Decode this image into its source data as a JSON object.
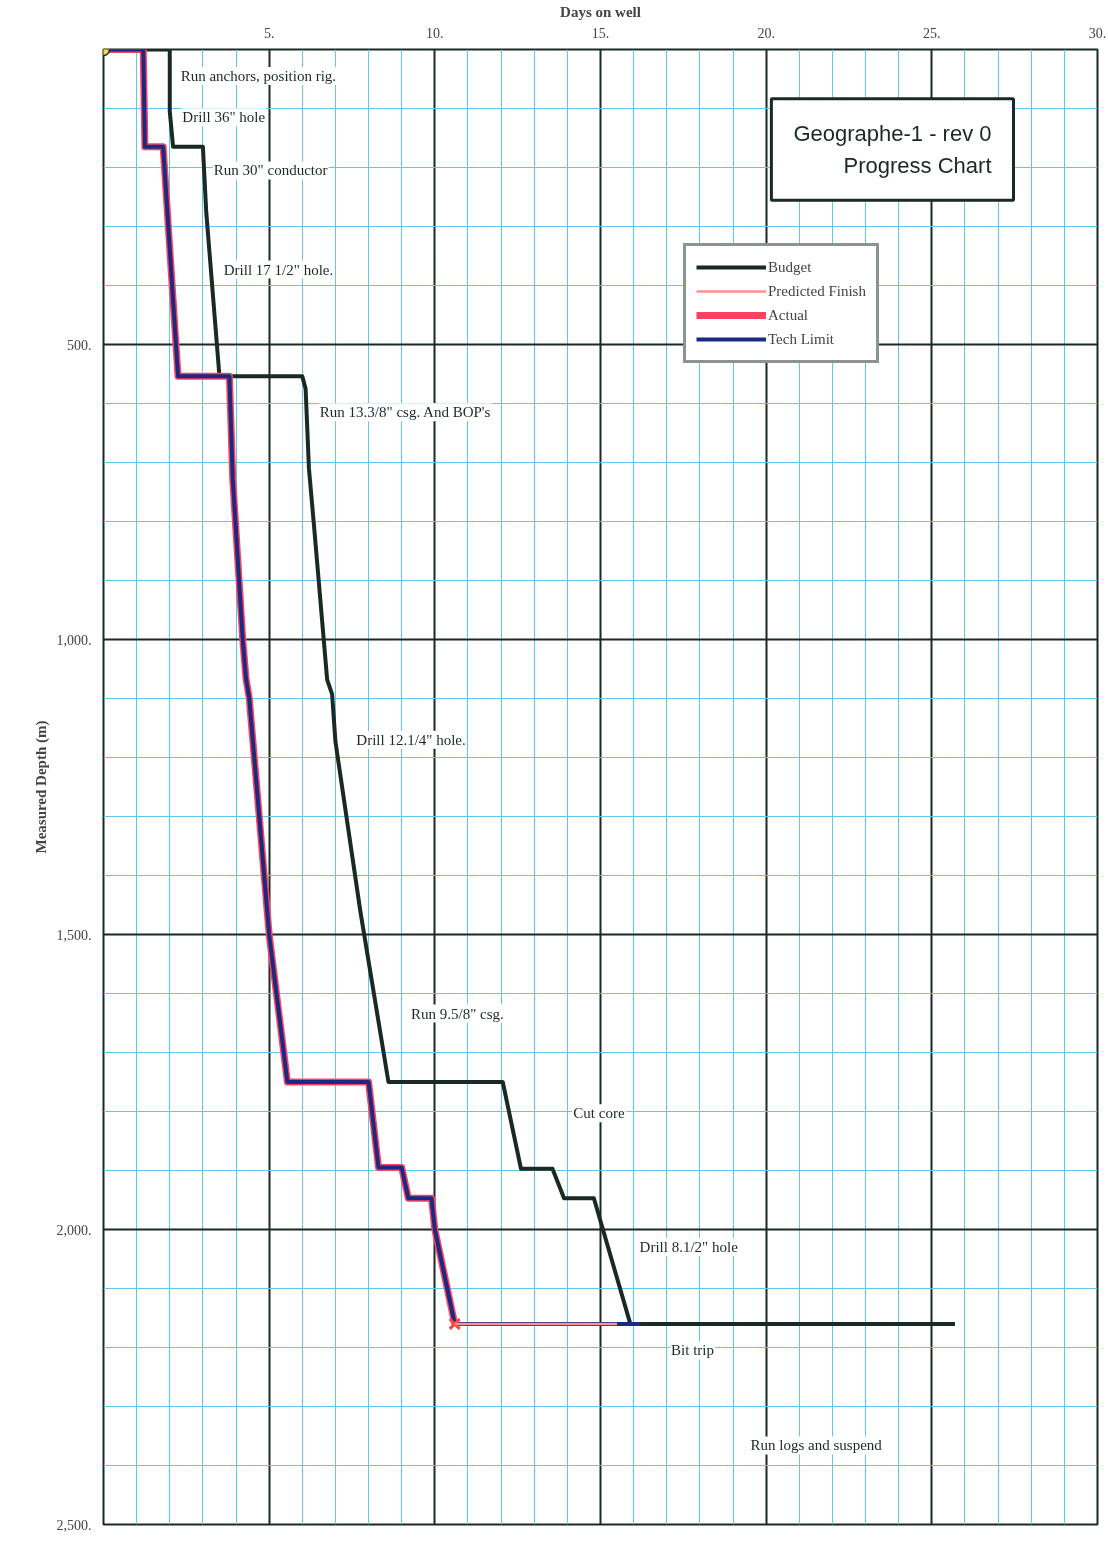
{
  "chart_data": {
    "type": "line",
    "title": "Geographe-1 - rev 0",
    "subtitle": "Progress Chart",
    "xlabel": "Days on well",
    "ylabel": "Measured Depth (m)",
    "xlim": [
      0,
      30
    ],
    "ylim": [
      2500,
      0
    ],
    "xticks": [
      {
        "value": 1,
        "label": null
      },
      {
        "value": 2,
        "label": null
      },
      {
        "value": 3,
        "label": null
      },
      {
        "value": 4,
        "label": null
      },
      {
        "value": 5,
        "label": "5."
      },
      {
        "value": 6,
        "label": null
      },
      {
        "value": 7,
        "label": null
      },
      {
        "value": 8,
        "label": null
      },
      {
        "value": 9,
        "label": null
      },
      {
        "value": 10,
        "label": "10."
      },
      {
        "value": 11,
        "label": null
      },
      {
        "value": 12,
        "label": null
      },
      {
        "value": 13,
        "label": null
      },
      {
        "value": 14,
        "label": null
      },
      {
        "value": 15,
        "label": "15."
      },
      {
        "value": 16,
        "label": null
      },
      {
        "value": 17,
        "label": null
      },
      {
        "value": 18,
        "label": null
      },
      {
        "value": 19,
        "label": null
      },
      {
        "value": 20,
        "label": "20."
      },
      {
        "value": 21,
        "label": null
      },
      {
        "value": 22,
        "label": null
      },
      {
        "value": 23,
        "label": null
      },
      {
        "value": 24,
        "label": null
      },
      {
        "value": 25,
        "label": "25."
      },
      {
        "value": 26,
        "label": null
      },
      {
        "value": 27,
        "label": null
      },
      {
        "value": 28,
        "label": null
      },
      {
        "value": 29,
        "label": null
      },
      {
        "value": 30,
        "label": "30."
      }
    ],
    "yticks": [
      {
        "value": 100,
        "label": null
      },
      {
        "value": 200,
        "label": null
      },
      {
        "value": 300,
        "label": null
      },
      {
        "value": 400,
        "label": null
      },
      {
        "value": 500,
        "label": "500."
      },
      {
        "value": 600,
        "label": null
      },
      {
        "value": 700,
        "label": null
      },
      {
        "value": 800,
        "label": null
      },
      {
        "value": 900,
        "label": null
      },
      {
        "value": 1000,
        "label": "1,000."
      },
      {
        "value": 1100,
        "label": null
      },
      {
        "value": 1200,
        "label": null
      },
      {
        "value": 1300,
        "label": null
      },
      {
        "value": 1400,
        "label": null
      },
      {
        "value": 1500,
        "label": "1,500."
      },
      {
        "value": 1600,
        "label": null
      },
      {
        "value": 1700,
        "label": null
      },
      {
        "value": 1800,
        "label": null
      },
      {
        "value": 1900,
        "label": null
      },
      {
        "value": 2000,
        "label": "2,000."
      },
      {
        "value": 2100,
        "label": null
      },
      {
        "value": 2200,
        "label": null
      },
      {
        "value": 2300,
        "label": null
      },
      {
        "value": 2400,
        "label": null
      },
      {
        "value": 2500,
        "label": "2,500."
      }
    ],
    "grid": true,
    "legend": "top right",
    "line_style": "solid",
    "marker": "none",
    "series": [
      {
        "name": "Budget",
        "color": "#1a2a22",
        "x": [
          0,
          2.0,
          2.0,
          2.1,
          3.0,
          3.1,
          3.5,
          6.0,
          6.1,
          6.2,
          6.35,
          6.75,
          6.9,
          7.0,
          7.75,
          8.6,
          12.05,
          12.6,
          13.55,
          13.9,
          14.8,
          15.9,
          25.7
        ],
        "values": [
          0,
          0,
          105,
          165,
          165,
          275,
          554,
          554,
          575,
          710,
          805,
          1068,
          1093,
          1173,
          1460,
          1750,
          1750,
          1897,
          1897,
          1947,
          1947,
          2160,
          2160
        ]
      },
      {
        "name": "Predicted Finish",
        "color": "#ff9090",
        "x": [
          10.6,
          15.5
        ],
        "values": [
          2160,
          2160
        ]
      },
      {
        "name": "Actual",
        "color": "#ff4060",
        "x": [
          0,
          1.2,
          1.25,
          1.8,
          2.25,
          3.8,
          3.9,
          4.2,
          4.3,
          4.4,
          5.0,
          5.55,
          8.0,
          8.3,
          9.0,
          9.2,
          9.9,
          10.0,
          10.6
        ],
        "values": [
          0,
          0,
          165,
          165,
          554,
          554,
          727,
          998,
          1066,
          1100,
          1500,
          1750,
          1750,
          1895,
          1895,
          1947,
          1947,
          2000,
          2160
        ]
      },
      {
        "name": "Tech Limit",
        "color": "#1a2a80",
        "x": [
          0,
          1.2,
          1.25,
          1.8,
          2.25,
          3.8,
          3.9,
          4.2,
          4.3,
          4.4,
          5.0,
          5.55,
          8.0,
          8.3,
          9.0,
          9.2,
          9.9,
          10.0,
          10.6,
          16.2
        ],
        "values": [
          0,
          0,
          165,
          165,
          554,
          554,
          727,
          998,
          1066,
          1100,
          1500,
          1750,
          1750,
          1895,
          1895,
          1947,
          1947,
          2000,
          2160,
          2160
        ]
      },
      {
        "type": "scatter",
        "marker": "circle",
        "color": "#f0e040",
        "x": [
          0
        ],
        "values": [
          0
        ]
      },
      {
        "type": "scatter",
        "marker": "cross",
        "color": "#ff4040",
        "x": [
          10.6
        ],
        "values": [
          2160
        ]
      }
    ],
    "annotations": [
      "Run anchors, position rig.",
      "Drill 36\" hole",
      "Run 30\" conductor",
      "Drill 17 1/2\" hole.",
      "Run 13.3/8\" csg. And BOP's",
      "Drill 12.1/4\" hole.",
      "Run 9.5/8\" csg.",
      "Cut core",
      "Drill 8.1/2\" hole",
      "Bit trip",
      "Run logs and suspend"
    ]
  }
}
